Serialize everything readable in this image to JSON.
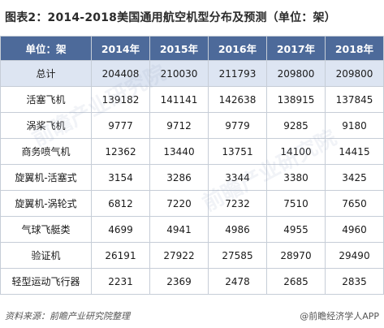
{
  "title": "图表2：2014-2018美国通用航空机型分布及预测（单位：架）",
  "table": {
    "headers": [
      "单位：架",
      "2014年",
      "2015年",
      "2016年",
      "2017年",
      "2018年"
    ],
    "rows": [
      {
        "label": "总计",
        "values": [
          "204408",
          "210030",
          "211793",
          "209800",
          "209800"
        ]
      },
      {
        "label": "活塞飞机",
        "values": [
          "139182",
          "141141",
          "142638",
          "138915",
          "137845"
        ]
      },
      {
        "label": "涡桨飞机",
        "values": [
          "9777",
          "9712",
          "9779",
          "9285",
          "9180"
        ]
      },
      {
        "label": "商务喷气机",
        "values": [
          "12362",
          "13440",
          "13751",
          "14100",
          "14415"
        ]
      },
      {
        "label": "旋翼机-活塞式",
        "values": [
          "3154",
          "3286",
          "3344",
          "3380",
          "3425"
        ]
      },
      {
        "label": "旋翼机-涡轮式",
        "values": [
          "6812",
          "7220",
          "7232",
          "7510",
          "7650"
        ]
      },
      {
        "label": "气球飞艇类",
        "values": [
          "4699",
          "4941",
          "4986",
          "4955",
          "4960"
        ]
      },
      {
        "label": "验证机",
        "values": [
          "26191",
          "27922",
          "27585",
          "28970",
          "29490"
        ]
      },
      {
        "label": "轻型运动飞行器",
        "values": [
          "2231",
          "2369",
          "2478",
          "2685",
          "2835"
        ]
      }
    ]
  },
  "footer": {
    "source": "资料来源：前瞻产业研究院整理",
    "brand": "@前瞻经济学人APP"
  },
  "watermark": {
    "text": "前瞻产业研究院"
  },
  "colors": {
    "header_bg": "#4d6a9a",
    "total_row_bg": "#dde5f2",
    "border": "#c6cdd7"
  }
}
